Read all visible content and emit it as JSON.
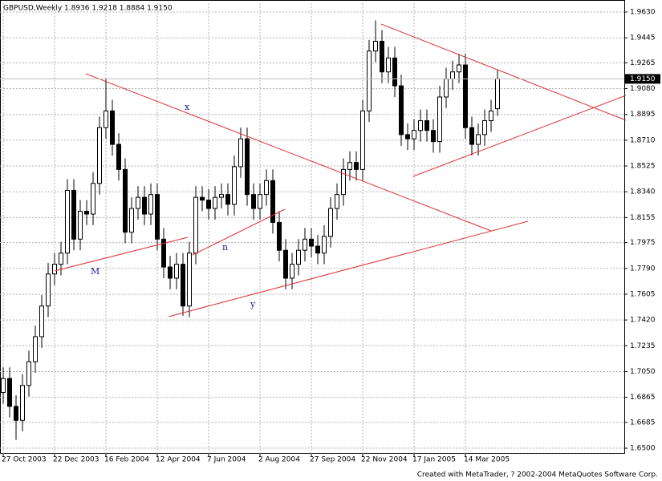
{
  "chart_data": {
    "type": "candlestick",
    "title": "GBPUSD,Weekly  1.8936 1.9218 1.8884 1.9150",
    "footer": "Created with MetaTrader, ? 2002-2004 MetaQuotes Software Corp.",
    "annotations": [
      "x",
      "n",
      "M",
      "y"
    ],
    "categories": [
      "27 Oct 2003",
      null,
      null,
      null,
      null,
      null,
      null,
      null,
      "22 Dec 2003",
      null,
      null,
      null,
      null,
      null,
      null,
      null,
      "16 Feb 2004",
      null,
      null,
      null,
      null,
      null,
      null,
      null,
      "12 Apr 2004",
      null,
      null,
      null,
      null,
      null,
      null,
      null,
      "7 Jun 2004",
      null,
      null,
      null,
      null,
      null,
      null,
      null,
      "2 Aug 2004",
      null,
      null,
      null,
      null,
      null,
      null,
      null,
      "27 Sep 2004",
      null,
      null,
      null,
      null,
      null,
      null,
      null,
      "22 Nov 2004",
      null,
      null,
      null,
      null,
      null,
      null,
      null,
      "17 Jan 2005",
      null,
      null,
      null,
      null,
      null,
      null,
      null,
      "14 Mar 2005",
      null,
      null,
      null,
      null,
      null
    ],
    "open": [
      1.69,
      1.7,
      1.68,
      1.67,
      1.695,
      1.712,
      1.73,
      1.752,
      1.775,
      1.782,
      1.79,
      1.835,
      1.8,
      1.82,
      1.818,
      1.84,
      1.88,
      1.892,
      1.868,
      1.85,
      1.805,
      1.822,
      1.83,
      1.818,
      1.832,
      1.8,
      1.78,
      1.772,
      1.782,
      1.752,
      1.79,
      1.83,
      1.828,
      1.822,
      1.83,
      1.832,
      1.825,
      1.852,
      1.872,
      1.832,
      1.822,
      1.832,
      1.842,
      1.812,
      1.792,
      1.772,
      1.782,
      1.792,
      1.8,
      1.795,
      1.79,
      1.802,
      1.822,
      1.832,
      1.85,
      1.855,
      1.85,
      1.892,
      1.935,
      1.942,
      1.92,
      1.93,
      1.91,
      1.875,
      1.872,
      1.878,
      1.885,
      1.878,
      1.87,
      1.902,
      1.915,
      1.92,
      1.925,
      1.88,
      1.868,
      1.875,
      1.885,
      1.8936
    ],
    "high": [
      1.708,
      1.708,
      1.688,
      1.703,
      1.72,
      1.738,
      1.76,
      1.783,
      1.79,
      1.798,
      1.843,
      1.843,
      1.828,
      1.828,
      1.848,
      1.888,
      1.915,
      1.9,
      1.876,
      1.858,
      1.83,
      1.838,
      1.838,
      1.84,
      1.84,
      1.808,
      1.788,
      1.79,
      1.79,
      1.798,
      1.838,
      1.838,
      1.836,
      1.838,
      1.84,
      1.84,
      1.86,
      1.88,
      1.88,
      1.84,
      1.84,
      1.85,
      1.85,
      1.82,
      1.8,
      1.79,
      1.8,
      1.808,
      1.808,
      1.803,
      1.81,
      1.83,
      1.84,
      1.858,
      1.863,
      1.863,
      1.9,
      1.943,
      1.957,
      1.95,
      1.938,
      1.938,
      1.918,
      1.883,
      1.886,
      1.893,
      1.893,
      1.886,
      1.91,
      1.923,
      1.928,
      1.933,
      1.933,
      1.888,
      1.883,
      1.893,
      1.9,
      1.9218
    ],
    "low": [
      1.682,
      1.672,
      1.656,
      1.662,
      1.687,
      1.704,
      1.722,
      1.744,
      1.767,
      1.774,
      1.782,
      1.792,
      1.792,
      1.81,
      1.81,
      1.832,
      1.872,
      1.86,
      1.842,
      1.797,
      1.797,
      1.814,
      1.81,
      1.81,
      1.792,
      1.772,
      1.764,
      1.764,
      1.745,
      1.744,
      1.782,
      1.82,
      1.814,
      1.814,
      1.822,
      1.817,
      1.817,
      1.844,
      1.824,
      1.814,
      1.814,
      1.824,
      1.804,
      1.784,
      1.764,
      1.764,
      1.774,
      1.784,
      1.787,
      1.782,
      1.782,
      1.794,
      1.814,
      1.824,
      1.842,
      1.842,
      1.842,
      1.884,
      1.927,
      1.912,
      1.912,
      1.902,
      1.867,
      1.864,
      1.864,
      1.87,
      1.87,
      1.862,
      1.862,
      1.894,
      1.907,
      1.912,
      1.872,
      1.86,
      1.86,
      1.867,
      1.877,
      1.8884
    ],
    "close": [
      1.7,
      1.68,
      1.67,
      1.695,
      1.712,
      1.73,
      1.752,
      1.775,
      1.782,
      1.79,
      1.835,
      1.8,
      1.82,
      1.818,
      1.84,
      1.88,
      1.892,
      1.868,
      1.85,
      1.805,
      1.822,
      1.83,
      1.818,
      1.832,
      1.8,
      1.78,
      1.772,
      1.782,
      1.752,
      1.79,
      1.83,
      1.828,
      1.822,
      1.83,
      1.832,
      1.825,
      1.852,
      1.872,
      1.832,
      1.822,
      1.832,
      1.842,
      1.812,
      1.792,
      1.772,
      1.782,
      1.792,
      1.8,
      1.795,
      1.79,
      1.802,
      1.822,
      1.832,
      1.85,
      1.855,
      1.85,
      1.892,
      1.935,
      1.942,
      1.92,
      1.93,
      1.91,
      1.875,
      1.872,
      1.878,
      1.885,
      1.878,
      1.87,
      1.902,
      1.915,
      1.92,
      1.925,
      1.88,
      1.868,
      1.875,
      1.885,
      1.892,
      1.915
    ],
    "up_color": "#ffffff",
    "down_color": "#000000",
    "trend_color": "#e03030",
    "current_price": {
      "value": 1.915,
      "label": "1.9150"
    },
    "ylim": [
      1.646,
      1.9693
    ],
    "yticks": [
      {
        "value": 1.963,
        "label": "1.9630"
      },
      {
        "value": 1.9445,
        "label": "1.9445"
      },
      {
        "value": 1.9265,
        "label": "1.9265"
      },
      {
        "value": 1.908,
        "label": "1.9080"
      },
      {
        "value": 1.8895,
        "label": "1.8895"
      },
      {
        "value": 1.871,
        "label": "1.8710"
      },
      {
        "value": 1.8525,
        "label": "1.8525"
      },
      {
        "value": 1.834,
        "label": "1.8340"
      },
      {
        "value": 1.8155,
        "label": "1.8155"
      },
      {
        "value": 1.7975,
        "label": "1.7975"
      },
      {
        "value": 1.779,
        "label": "1.7790"
      },
      {
        "value": 1.7605,
        "label": "1.7605"
      },
      {
        "value": 1.742,
        "label": "1.7420"
      },
      {
        "value": 1.7235,
        "label": "1.7235"
      },
      {
        "value": 1.705,
        "label": "1.7050"
      },
      {
        "value": 1.6865,
        "label": "1.6865"
      },
      {
        "value": 1.6685,
        "label": "1.6685"
      },
      {
        "value": 1.65,
        "label": "1.6500"
      }
    ],
    "grid": true
  }
}
